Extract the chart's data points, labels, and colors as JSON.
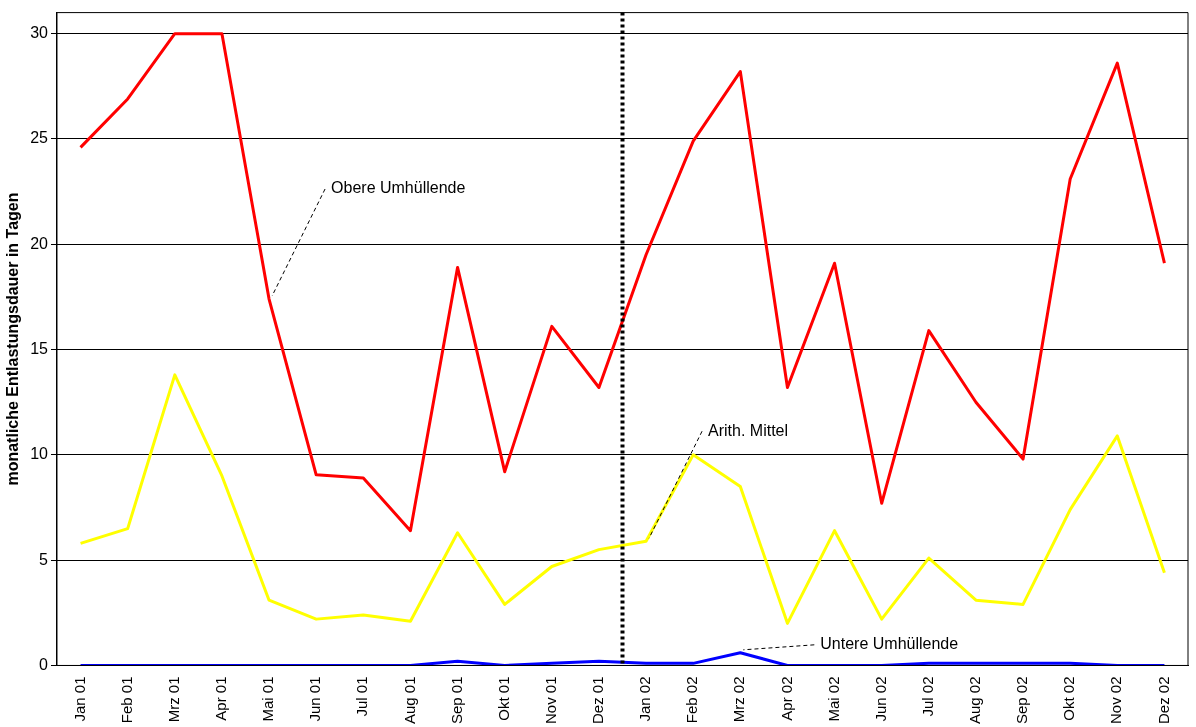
{
  "chart_data": {
    "type": "line",
    "ylabel": "monatliche Entlastungsdauer in Tagen",
    "categories": [
      "Jan 01",
      "Feb 01",
      "Mrz 01",
      "Apr 01",
      "Mai 01",
      "Jun 01",
      "Jul 01",
      "Aug 01",
      "Sep 01",
      "Okt 01",
      "Nov 01",
      "Dez 01",
      "Jan 02",
      "Feb 02",
      "Mrz 02",
      "Apr 02",
      "Mai 02",
      "Jun 02",
      "Jul 02",
      "Aug 02",
      "Sep 02",
      "Okt 02",
      "Nov 02",
      "Dez 02"
    ],
    "series": [
      {
        "color": "#ff0000",
        "values": [
          24.6,
          26.9,
          30,
          30,
          17.4,
          9.05,
          8.9,
          6.4,
          18.9,
          9.2,
          16.1,
          13.2,
          19.5,
          24.9,
          28.2,
          13.2,
          19.1,
          7.7,
          15.9,
          12.5,
          9.8,
          23.1,
          28.6,
          19.1
        ]
      },
      {
        "color": "#ffff00",
        "values": [
          5.8,
          6.5,
          13.8,
          9.0,
          3.1,
          2.2,
          2.4,
          2.1,
          6.3,
          2.9,
          4.7,
          5.5,
          5.9,
          10.0,
          8.5,
          2.0,
          6.4,
          2.2,
          5.1,
          3.1,
          2.9,
          7.4,
          10.9,
          4.4
        ]
      },
      {
        "color": "#0000ff",
        "values": [
          0,
          0,
          0,
          0,
          0,
          0,
          0,
          0,
          0.2,
          0,
          0.1,
          0.2,
          0.1,
          0.1,
          0.6,
          0,
          0,
          0,
          0.1,
          0.1,
          0.1,
          0.1,
          0,
          0
        ]
      }
    ],
    "ylim": [
      0,
      31
    ],
    "yticks": [
      0,
      5,
      10,
      15,
      20,
      25,
      30
    ],
    "grid": "y",
    "legend": false,
    "marker": "none",
    "line_style": "solid",
    "ref_lines": [
      {
        "axis": "x",
        "value": "Jan 02",
        "color": "#000000",
        "line_style": "dotted"
      }
    ],
    "annotations": [
      {
        "text": "Obere Umhüllende",
        "x": "Mai 01",
        "y": 17.4
      },
      {
        "text": "Arith. Mittel",
        "x": "Jan 02",
        "y": 5.9
      },
      {
        "text": "Untere Umhüllende",
        "x": "Mrz 02",
        "y": 0.6
      }
    ]
  }
}
